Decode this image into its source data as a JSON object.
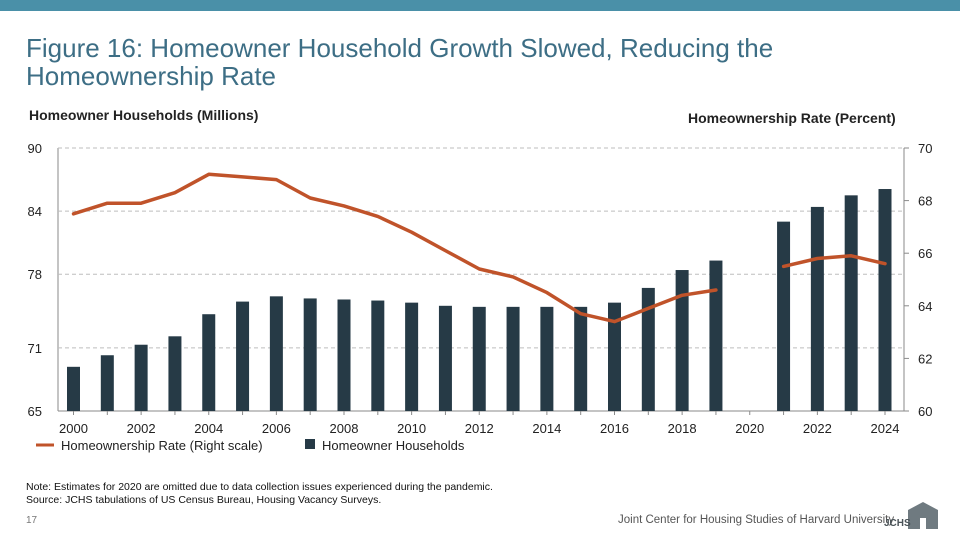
{
  "title": "Figure 16: Homeowner Household Growth Slowed, Reducing the Homeownership Rate",
  "axis_titles": {
    "left": "Homeowner Households (Millions)",
    "right": "Homeownership Rate (Percent)"
  },
  "legend": {
    "line": "Homeownership Rate (Right scale)",
    "bar": "Homeowner Households"
  },
  "note": "Note: Estimates for 2020 are omitted due to data collection issues experienced during the pandemic.",
  "source": "Source: JCHS tabulations of US Census Bureau, Housing Vacancy Surveys.",
  "slide_number": "17",
  "organization": "Joint Center for Housing Studies of Harvard University",
  "logo_text": "JCHS",
  "colors": {
    "bar": "#263a46",
    "line": "#c0532a",
    "title": "#3d6e85",
    "topbar": "#4a90a8"
  },
  "chart_data": {
    "type": "bar",
    "years": [
      2000,
      2001,
      2002,
      2003,
      2004,
      2005,
      2006,
      2007,
      2008,
      2009,
      2010,
      2011,
      2012,
      2013,
      2014,
      2015,
      2016,
      2017,
      2018,
      2019,
      2020,
      2021,
      2022,
      2023,
      2024
    ],
    "x_tick_labels": [
      "2000",
      "2002",
      "2004",
      "2006",
      "2008",
      "2010",
      "2012",
      "2014",
      "2016",
      "2018",
      "2020",
      "2022",
      "2024"
    ],
    "y_left_ticks": [
      "65",
      "71",
      "78",
      "84",
      "90"
    ],
    "y_right_ticks": [
      "60",
      "62",
      "64",
      "66",
      "68",
      "70"
    ],
    "ylim_left": [
      65,
      90
    ],
    "ylim_right": [
      60,
      70
    ],
    "series": [
      {
        "name": "Homeowner Households",
        "type": "bar",
        "axis": "left",
        "values": [
          69.2,
          70.3,
          71.3,
          72.1,
          74.2,
          75.4,
          75.9,
          75.7,
          75.6,
          75.5,
          75.3,
          75.0,
          74.9,
          74.9,
          74.9,
          74.9,
          75.3,
          76.7,
          78.4,
          79.3,
          null,
          83.0,
          84.4,
          85.5,
          86.1
        ]
      },
      {
        "name": "Homeownership Rate (Right scale)",
        "type": "line",
        "axis": "right",
        "values": [
          67.5,
          67.9,
          67.9,
          68.3,
          69.0,
          68.9,
          68.8,
          68.1,
          67.8,
          67.4,
          66.8,
          66.1,
          65.4,
          65.1,
          64.5,
          63.7,
          63.4,
          63.9,
          64.4,
          64.6,
          null,
          65.5,
          65.8,
          65.9,
          65.6
        ]
      }
    ],
    "grid": true,
    "legend_position": "bottom-left"
  }
}
